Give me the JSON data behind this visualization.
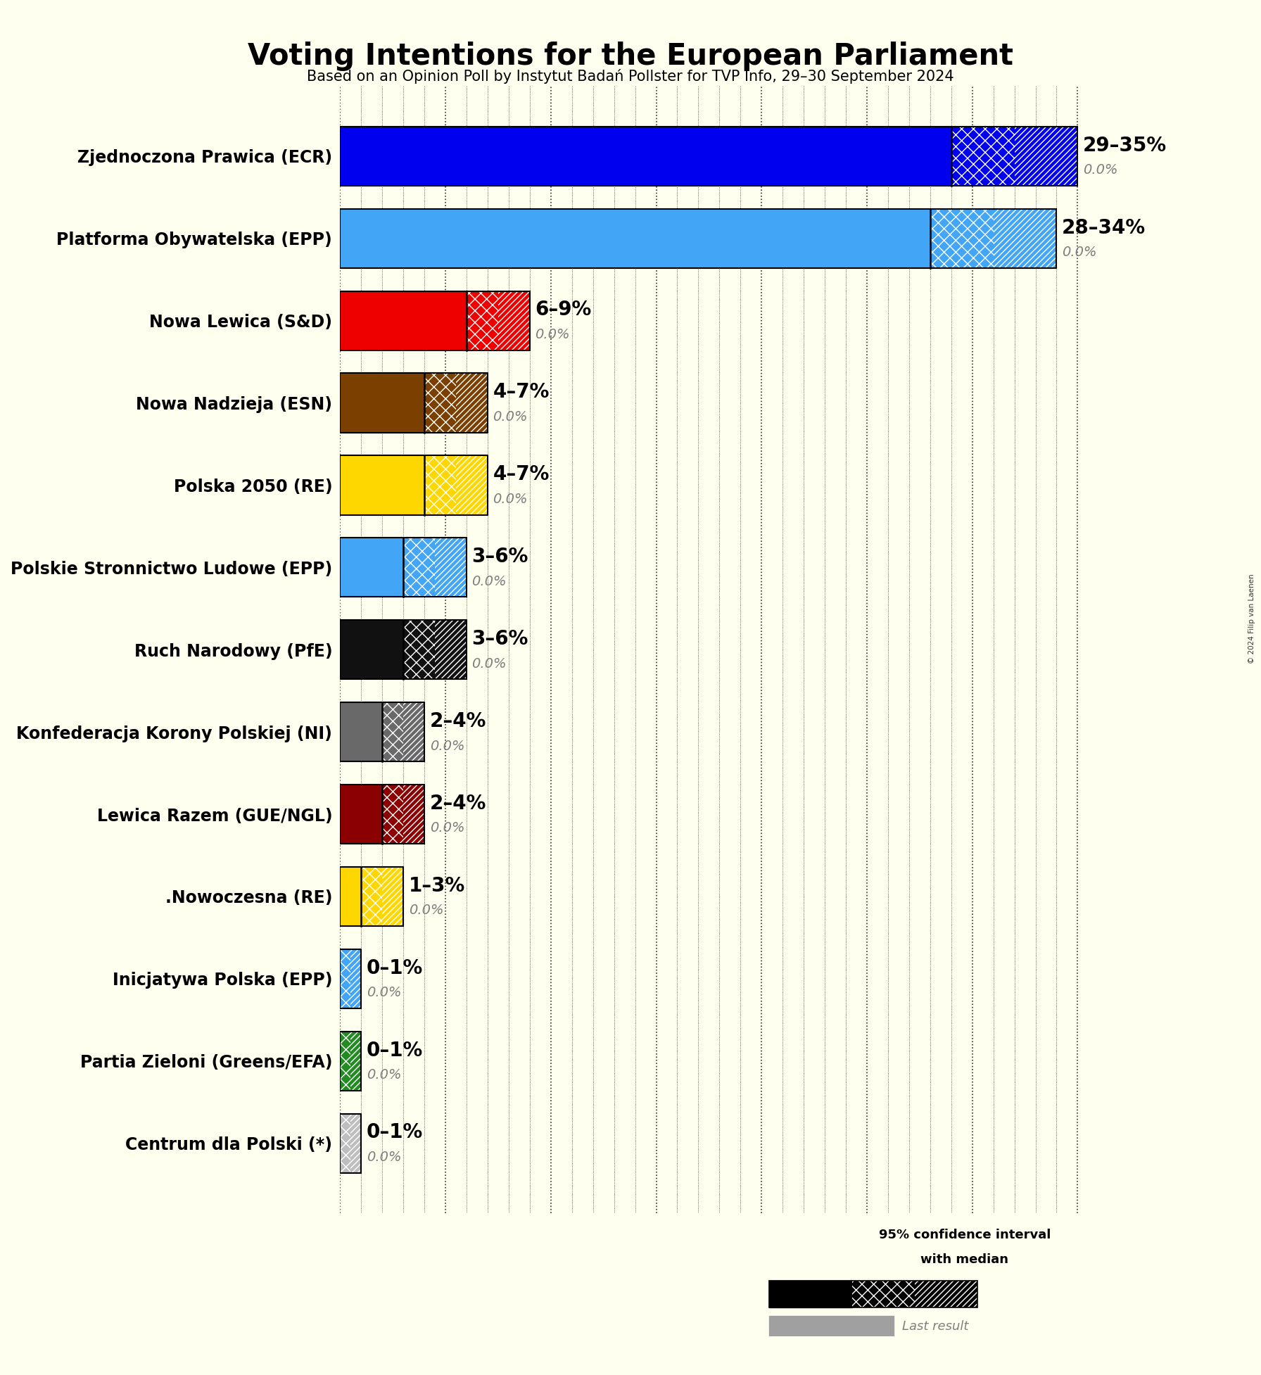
{
  "title": "Voting Intentions for the European Parliament",
  "subtitle": "Based on an Opinion Poll by Instytut Badań Pollster for TVP Info, 29–30 September 2024",
  "copyright": "© 2024 Filip van Laenen",
  "parties": [
    {
      "name": "Zjednoczona Prawica (ECR)",
      "low": 29,
      "high": 35,
      "median": 29,
      "last": 0.0,
      "color": "#0000EE"
    },
    {
      "name": "Platforma Obywatelska (EPP)",
      "low": 28,
      "high": 34,
      "median": 28,
      "last": 0.0,
      "color": "#42A5F5"
    },
    {
      "name": "Nowa Lewica (S&D)",
      "low": 6,
      "high": 9,
      "median": 6,
      "last": 0.0,
      "color": "#EE0000"
    },
    {
      "name": "Nowa Nadzieja (ESN)",
      "low": 4,
      "high": 7,
      "median": 4,
      "last": 0.0,
      "color": "#7B3F00"
    },
    {
      "name": "Polska 2050 (RE)",
      "low": 4,
      "high": 7,
      "median": 4,
      "last": 0.0,
      "color": "#FFD700"
    },
    {
      "name": "Polskie Stronnictwo Ludowe (EPP)",
      "low": 3,
      "high": 6,
      "median": 3,
      "last": 0.0,
      "color": "#42A5F5"
    },
    {
      "name": "Ruch Narodowy (PfE)",
      "low": 3,
      "high": 6,
      "median": 3,
      "last": 0.0,
      "color": "#111111"
    },
    {
      "name": "Konfederacja Korony Polskiej (NI)",
      "low": 2,
      "high": 4,
      "median": 2,
      "last": 0.0,
      "color": "#696969"
    },
    {
      "name": "Lewica Razem (GUE/NGL)",
      "low": 2,
      "high": 4,
      "median": 2,
      "last": 0.0,
      "color": "#8B0000"
    },
    {
      "name": ".Nowoczesna (RE)",
      "low": 1,
      "high": 3,
      "median": 1,
      "last": 0.0,
      "color": "#FFD700"
    },
    {
      "name": "Inicjatywa Polska (EPP)",
      "low": 0,
      "high": 1,
      "median": 0,
      "last": 0.0,
      "color": "#42A5F5"
    },
    {
      "name": "Partia Zieloni (Greens/EFA)",
      "low": 0,
      "high": 1,
      "median": 0,
      "last": 0.0,
      "color": "#228B22"
    },
    {
      "name": "Centrum dla Polski (*)",
      "low": 0,
      "high": 1,
      "median": 0,
      "last": 0.0,
      "color": "#BEBEBE"
    }
  ],
  "xlim": [
    0,
    36
  ],
  "background_color": "#FFFFF0",
  "bar_height": 0.72,
  "title_fontsize": 30,
  "subtitle_fontsize": 15,
  "label_fontsize": 17,
  "range_fontsize": 20,
  "last_fontsize": 14
}
